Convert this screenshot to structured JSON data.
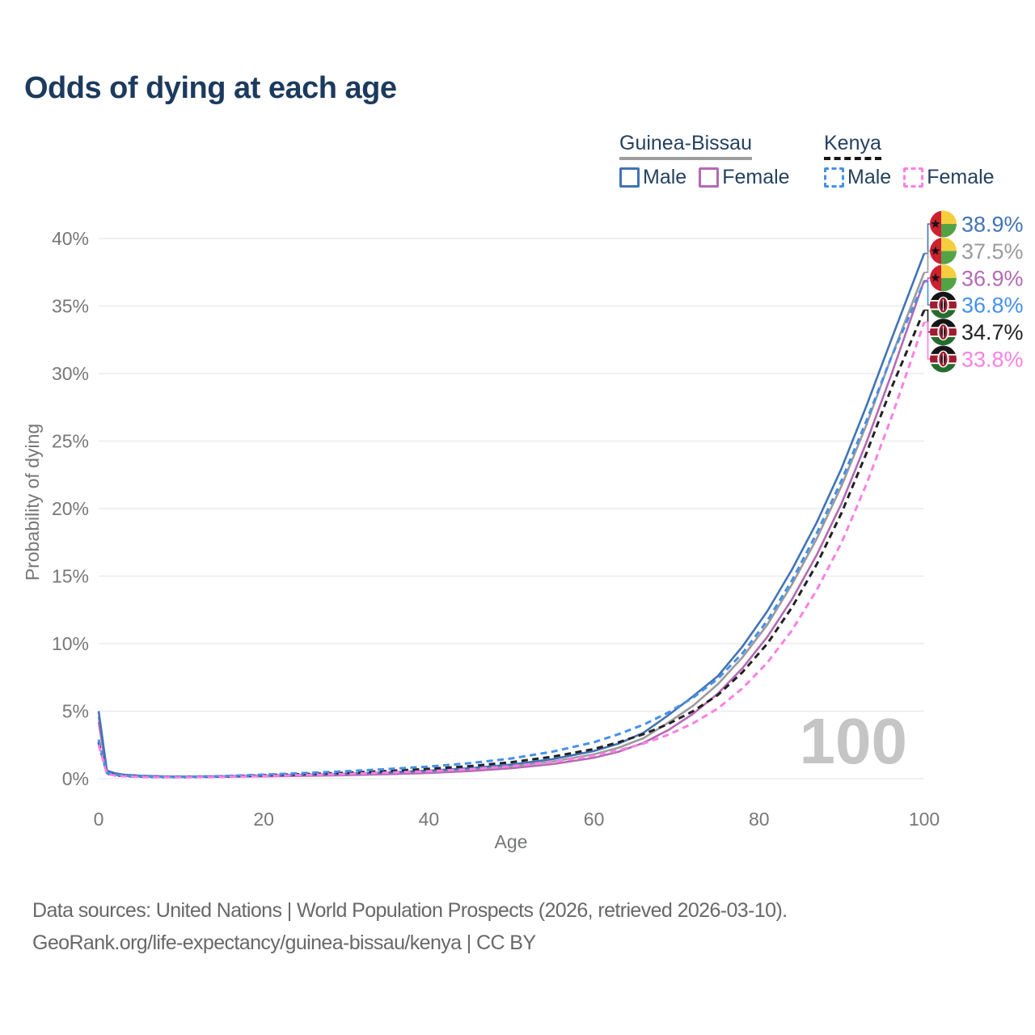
{
  "title": "Odds of dying at each age",
  "legend": {
    "groups": [
      {
        "country": "Guinea-Bissau",
        "line_style": "solid",
        "underline_color": "#9e9e9e",
        "items": [
          {
            "label": "Male",
            "color": "#4273b4",
            "dashed": false
          },
          {
            "label": "Female",
            "color": "#b46ab4",
            "dashed": false
          }
        ]
      },
      {
        "country": "Kenya",
        "line_style": "dashed",
        "underline_color": "#161616",
        "items": [
          {
            "label": "Male",
            "color": "#4690ea",
            "dashed": true
          },
          {
            "label": "Female",
            "color": "#fa80e4",
            "dashed": true
          }
        ]
      }
    ]
  },
  "watermark": "100",
  "sources": {
    "line1": "Data sources: United Nations | World Population Prospects (2026, retrieved 2026-03-10).",
    "line2": "GeoRank.org/life-expectancy/guinea-bissau/kenya | CC BY"
  },
  "chart_data": {
    "type": "line",
    "title": "Odds of dying at each age",
    "xlabel": "Age",
    "ylabel": "Probability of dying",
    "xlim": [
      0,
      100
    ],
    "ylim_pct": [
      0,
      40
    ],
    "x_ticks": [
      0,
      20,
      40,
      60,
      80,
      100
    ],
    "y_ticks_pct": [
      0,
      5,
      10,
      15,
      20,
      25,
      30,
      35,
      40
    ],
    "grid": "horizontal",
    "legend_position": "top-right",
    "x_ages": [
      0,
      1,
      2,
      3,
      5,
      8,
      10,
      15,
      20,
      25,
      30,
      35,
      40,
      45,
      50,
      55,
      60,
      63,
      66,
      69,
      72,
      75,
      78,
      81,
      84,
      87,
      90,
      93,
      96,
      100
    ],
    "series": [
      {
        "id": "gb-male",
        "name": "Guinea-Bissau Male",
        "country": "Guinea-Bissau",
        "sex": "Male",
        "flag": "gw",
        "color": "#4273b4",
        "dash": "solid",
        "end_label": "38.9%",
        "end_value": 38.9,
        "values": [
          5.0,
          0.6,
          0.4,
          0.3,
          0.22,
          0.17,
          0.16,
          0.18,
          0.24,
          0.3,
          0.37,
          0.47,
          0.6,
          0.78,
          1.05,
          1.45,
          2.05,
          2.6,
          3.4,
          4.7,
          6.1,
          7.6,
          9.8,
          12.4,
          15.5,
          19.0,
          23.0,
          27.6,
          32.5,
          38.9
        ]
      },
      {
        "id": "gb-both",
        "name": "Guinea-Bissau Both sexes",
        "country": "Guinea-Bissau",
        "sex": "Both sexes",
        "flag": "gw",
        "color": "#9b9b9b",
        "dash": "solid",
        "end_label": "37.5%",
        "end_value": 37.5,
        "values": [
          4.6,
          0.55,
          0.37,
          0.28,
          0.2,
          0.15,
          0.14,
          0.16,
          0.21,
          0.26,
          0.32,
          0.41,
          0.52,
          0.68,
          0.92,
          1.27,
          1.8,
          2.3,
          3.0,
          4.15,
          5.4,
          7.0,
          9.0,
          11.4,
          14.4,
          17.8,
          21.7,
          26.2,
          31.2,
          37.5
        ]
      },
      {
        "id": "gb-female",
        "name": "Guinea-Bissau Female",
        "country": "Guinea-Bissau",
        "sex": "Female",
        "flag": "gw",
        "color": "#b46ab4",
        "dash": "solid",
        "end_label": "36.9%",
        "end_value": 36.9,
        "values": [
          4.2,
          0.5,
          0.34,
          0.25,
          0.18,
          0.13,
          0.12,
          0.14,
          0.17,
          0.21,
          0.26,
          0.33,
          0.42,
          0.56,
          0.77,
          1.08,
          1.55,
          2.0,
          2.65,
          3.6,
          4.8,
          6.3,
          8.2,
          10.5,
          13.3,
          16.6,
          20.4,
          24.9,
          29.9,
          36.9
        ]
      },
      {
        "id": "ke-male",
        "name": "Kenya Male",
        "country": "Kenya",
        "sex": "Male",
        "flag": "ke",
        "color": "#4690ea",
        "dash": "dashed",
        "end_label": "36.8%",
        "end_value": 36.8,
        "values": [
          2.9,
          0.42,
          0.28,
          0.22,
          0.17,
          0.14,
          0.14,
          0.19,
          0.3,
          0.42,
          0.55,
          0.71,
          0.9,
          1.15,
          1.5,
          2.0,
          2.7,
          3.3,
          4.0,
          4.9,
          6.0,
          7.4,
          9.3,
          11.7,
          14.7,
          18.2,
          22.1,
          26.5,
          31.2,
          36.8
        ]
      },
      {
        "id": "ke-both",
        "name": "Kenya Both sexes",
        "country": "Kenya",
        "sex": "Both sexes",
        "flag": "ke",
        "color": "#222222",
        "dash": "dashed",
        "end_label": "34.7%",
        "end_value": 34.7,
        "values": [
          2.7,
          0.39,
          0.25,
          0.2,
          0.15,
          0.12,
          0.12,
          0.16,
          0.25,
          0.34,
          0.44,
          0.57,
          0.73,
          0.93,
          1.22,
          1.63,
          2.2,
          2.7,
          3.3,
          4.05,
          5.0,
          6.2,
          7.9,
          10.0,
          12.7,
          15.9,
          19.7,
          24.1,
          28.9,
          34.7
        ]
      },
      {
        "id": "ke-female",
        "name": "Kenya Female",
        "country": "Kenya",
        "sex": "Female",
        "flag": "ke",
        "color": "#fa80e4",
        "dash": "dashed",
        "end_label": "33.8%",
        "end_value": 33.8,
        "values": [
          2.5,
          0.36,
          0.23,
          0.18,
          0.13,
          0.1,
          0.1,
          0.13,
          0.2,
          0.27,
          0.35,
          0.45,
          0.55,
          0.7,
          0.92,
          1.25,
          1.7,
          2.1,
          2.6,
          3.25,
          4.1,
          5.2,
          6.7,
          8.6,
          11.0,
          14.0,
          17.5,
          21.8,
          26.7,
          33.8
        ]
      }
    ],
    "flag_colors": {
      "gw": {
        "red": "#ce2031",
        "yellow": "#f5ce3e",
        "green": "#53a346",
        "star": "#151515"
      },
      "ke": {
        "black": "#151515",
        "white": "#ffffff",
        "red": "#a01c30",
        "green": "#256c2f"
      }
    }
  }
}
